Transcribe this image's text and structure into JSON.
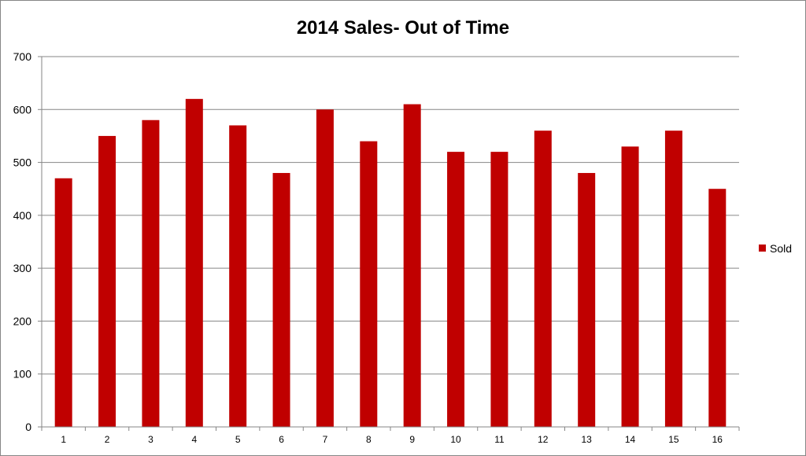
{
  "chart_data": {
    "type": "bar",
    "title": "2014 Sales- Out of Time",
    "xlabel": "",
    "ylabel": "",
    "categories": [
      "1",
      "2",
      "3",
      "4",
      "5",
      "6",
      "7",
      "8",
      "9",
      "10",
      "11",
      "12",
      "13",
      "14",
      "15",
      "16"
    ],
    "series": [
      {
        "name": "Sold",
        "color": "#C00000",
        "values": [
          470,
          550,
          580,
          620,
          570,
          480,
          600,
          540,
          610,
          520,
          520,
          560,
          480,
          530,
          560,
          450
        ]
      }
    ],
    "ylim": [
      0,
      700
    ],
    "yticks": [
      "0",
      "100",
      "200",
      "300",
      "400",
      "500",
      "600",
      "700"
    ],
    "grid": true,
    "legend_position": "right"
  }
}
